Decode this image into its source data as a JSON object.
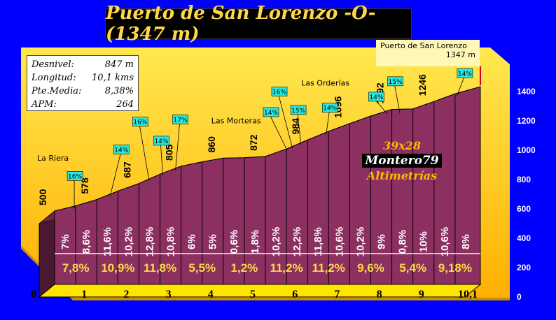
{
  "title": "Puerto de San Lorenzo -O- (1347 m)",
  "stats": [
    {
      "label": "Desnivel:",
      "value": "847 m"
    },
    {
      "label": "Longitud:",
      "value": "10,1 kms"
    },
    {
      "label": "Pte.Media:",
      "value": "8,38%"
    },
    {
      "label": "APM:",
      "value": "264"
    }
  ],
  "summit": {
    "name": "Puerto de San Lorenzo",
    "altitude": "1347 m"
  },
  "credit": {
    "line1": "39x28",
    "line2": "Montero79",
    "line3": "Altimetrías"
  },
  "colors": {
    "background": "#0000ff",
    "panel": "#ffd21a",
    "profile": "#8b3060",
    "highlight": "#28e8e0",
    "accent": "#ffd84a"
  },
  "chart_data": {
    "type": "area",
    "x_tick_labels": [
      "0",
      "1",
      "2",
      "3",
      "4",
      "5",
      "6",
      "7",
      "8",
      "9",
      "10,1"
    ],
    "y_tick_labels": [
      "0",
      "200",
      "400",
      "600",
      "800",
      "1000",
      "1200",
      "1400"
    ],
    "ylim": [
      0,
      1400
    ],
    "profile": [
      {
        "x": 0,
        "y": 500
      },
      {
        "x": 0.5,
        "y": 535
      },
      {
        "x": 1,
        "y": 578
      },
      {
        "x": 1.5,
        "y": 636
      },
      {
        "x": 2,
        "y": 687
      },
      {
        "x": 2.5,
        "y": 751
      },
      {
        "x": 3,
        "y": 805
      },
      {
        "x": 3.5,
        "y": 835
      },
      {
        "x": 4,
        "y": 860
      },
      {
        "x": 4.5,
        "y": 863
      },
      {
        "x": 5,
        "y": 872
      },
      {
        "x": 5.5,
        "y": 923
      },
      {
        "x": 6,
        "y": 984
      },
      {
        "x": 6.5,
        "y": 1043
      },
      {
        "x": 7,
        "y": 1096
      },
      {
        "x": 7.5,
        "y": 1147
      },
      {
        "x": 8,
        "y": 1192
      },
      {
        "x": 8.5,
        "y": 1196
      },
      {
        "x": 9,
        "y": 1246
      },
      {
        "x": 9.5,
        "y": 1299
      },
      {
        "x": 10.1,
        "y": 1347
      }
    ],
    "half_km_grades": [
      "7%",
      "8,6%",
      "11,6%",
      "10,2%",
      "12,8%",
      "10,8%",
      "6%",
      "5%",
      "0,6%",
      "1,8%",
      "10,2%",
      "12,2%",
      "11,8%",
      "10,6%",
      "10,2%",
      "9%",
      "0,8%",
      "10%",
      "10,6%",
      "8%"
    ],
    "km_grades": [
      "7,8%",
      "10,9%",
      "11,8%",
      "5,5%",
      "1,2%",
      "11,2%",
      "11,2%",
      "9,6%",
      "5,4%",
      "9,18%"
    ],
    "altitude_labels": [
      {
        "x": 0,
        "y": 500,
        "text": "500"
      },
      {
        "x": 1,
        "y": 578,
        "text": "578"
      },
      {
        "x": 2,
        "y": 687,
        "text": "687"
      },
      {
        "x": 3,
        "y": 805,
        "text": "805"
      },
      {
        "x": 4,
        "y": 860,
        "text": "860"
      },
      {
        "x": 5,
        "y": 872,
        "text": "872"
      },
      {
        "x": 6,
        "y": 984,
        "text": "984"
      },
      {
        "x": 7,
        "y": 1096,
        "text": "1096"
      },
      {
        "x": 8,
        "y": 1192,
        "text": "1192"
      },
      {
        "x": 9,
        "y": 1246,
        "text": "1246"
      }
    ],
    "places": [
      {
        "x": 0,
        "y": 500,
        "text": "La Riera"
      },
      {
        "x": 3.8,
        "y": 860,
        "text": "Las Morteras"
      },
      {
        "x": 6.1,
        "y": 984,
        "text": "Las Orderías"
      }
    ],
    "steep_sections": [
      {
        "x0": 0.4,
        "x1": 0.8,
        "text": "16%",
        "lx": 0.3,
        "ly": 770
      },
      {
        "x0": 1.3,
        "x1": 1.6,
        "text": "14%",
        "lx": 1.4,
        "ly": 950
      },
      {
        "x0": 2.2,
        "x1": 2.55,
        "text": "16%",
        "lx": 1.85,
        "ly": 1140
      },
      {
        "x0": 2.55,
        "x1": 2.85,
        "text": "14%",
        "lx": 2.35,
        "ly": 1010
      },
      {
        "x0": 2.85,
        "x1": 3.15,
        "text": "17%",
        "lx": 2.8,
        "ly": 1155
      },
      {
        "x0": 5.45,
        "x1": 5.85,
        "text": "14%",
        "lx": 4.95,
        "ly": 1205
      },
      {
        "x0": 5.6,
        "x1": 5.95,
        "text": "16%",
        "lx": 5.15,
        "ly": 1345
      },
      {
        "x0": 5.85,
        "x1": 6.1,
        "text": "15%",
        "lx": 5.6,
        "ly": 1220
      },
      {
        "x0": 6.4,
        "x1": 6.75,
        "text": "14%",
        "lx": 6.35,
        "ly": 1235
      },
      {
        "x0": 7.9,
        "x1": 8.15,
        "text": "14%",
        "lx": 7.45,
        "ly": 1310
      },
      {
        "x0": 8.2,
        "x1": 8.45,
        "text": "15%",
        "lx": 7.9,
        "ly": 1415
      },
      {
        "x0": 9.55,
        "x1": 9.8,
        "text": "14%",
        "lx": 9.55,
        "ly": 1470
      }
    ]
  }
}
